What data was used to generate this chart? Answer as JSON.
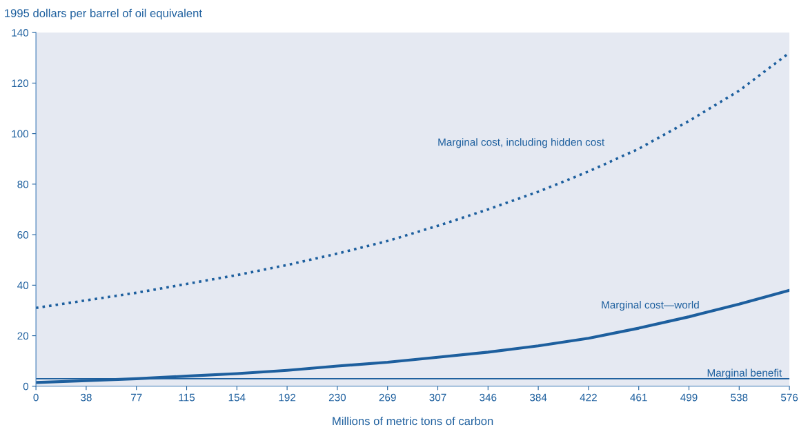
{
  "chart_data": {
    "type": "line",
    "ylabel": "1995 dollars per barrel of oil equivalent",
    "xlabel": "Millions of metric tons of carbon",
    "x": [
      0,
      38.4,
      76.8,
      115.2,
      153.6,
      192,
      230.4,
      268.8,
      307.2,
      345.6,
      384,
      422.4,
      460.8,
      499.2,
      537.6,
      576
    ],
    "series": [
      {
        "name": "Marginal cost, including hidden cost",
        "color": "#1d5f9e",
        "line_style": "dotted",
        "values": [
          31,
          34,
          37,
          40.5,
          44,
          48,
          52.5,
          57.5,
          63.5,
          70,
          77,
          85,
          94,
          105,
          117,
          132
        ]
      },
      {
        "name": "Marginal cost—world",
        "color": "#1d5f9e",
        "line_style": "solid",
        "values": [
          1.5,
          2.2,
          3,
          4,
          5,
          6.3,
          8,
          9.5,
          11.5,
          13.5,
          16,
          19,
          23,
          27.5,
          32.5,
          38
        ]
      }
    ],
    "ref_lines": [
      {
        "axis": "y",
        "value": 3,
        "label": "Marginal benefit",
        "color": "#1d5f9e"
      }
    ],
    "xlim": [
      0,
      576
    ],
    "ylim": [
      0,
      140
    ],
    "xticks": [
      0,
      {
        "value": 38.4,
        "label": "38"
      },
      {
        "value": 76.8,
        "label": "77"
      },
      {
        "value": 115.2,
        "label": "115"
      },
      {
        "value": 153.6,
        "label": "154"
      },
      192,
      {
        "value": 230.4,
        "label": "230"
      },
      {
        "value": 268.8,
        "label": "269"
      },
      {
        "value": 307.2,
        "label": "307"
      },
      {
        "value": 345.6,
        "label": "346"
      },
      384,
      {
        "value": 422.4,
        "label": "422"
      },
      {
        "value": 460.8,
        "label": "461"
      },
      {
        "value": 499.2,
        "label": "499"
      },
      {
        "value": 537.6,
        "label": "538"
      },
      576
    ],
    "yticks": [
      0,
      20,
      40,
      60,
      80,
      100,
      120,
      140
    ],
    "grid": false,
    "legend": false
  }
}
